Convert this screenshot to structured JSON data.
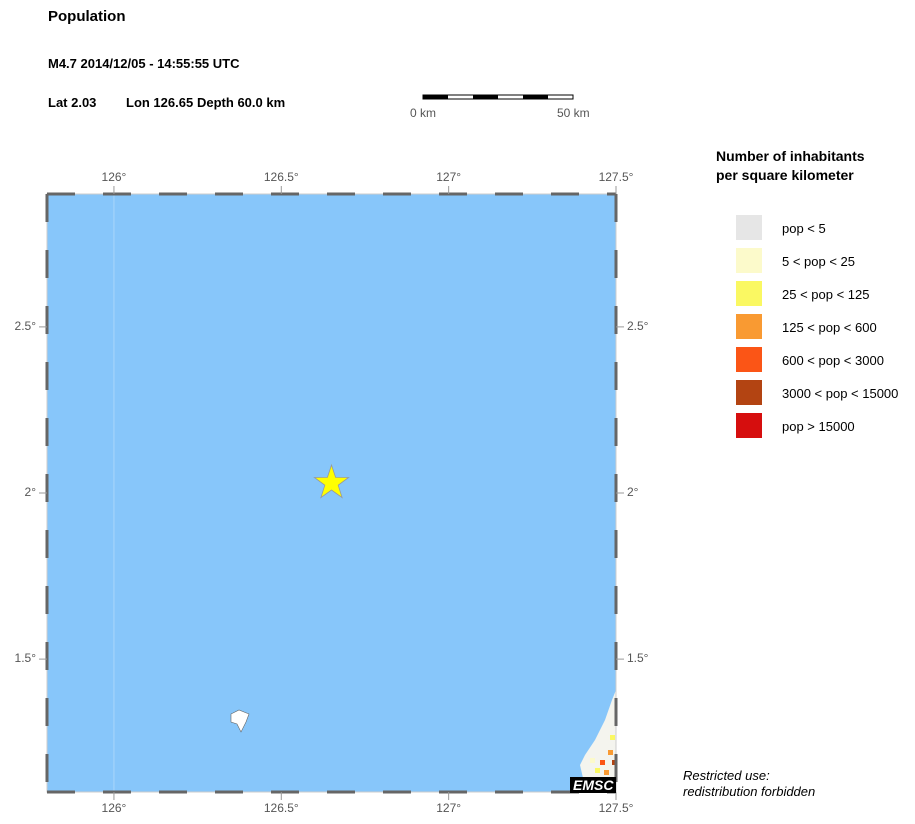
{
  "title": "Population",
  "event": {
    "line1": "M4.7  2014/12/05 - 14:55:55 UTC",
    "lat": "Lat  2.03",
    "lon": "Lon 126.65",
    "depth": "Depth  60.0 km"
  },
  "scalebar": {
    "start": "0 km",
    "end": "50 km"
  },
  "map": {
    "lon_range": [
      125.8,
      127.5
    ],
    "lat_range": [
      1.1,
      2.9
    ],
    "epicenter": {
      "lon": 126.65,
      "lat": 2.03
    },
    "sea_color": "#87c6fa",
    "lon_ticks": [
      "126°",
      "126.5°",
      "127°",
      "127.5°"
    ],
    "lat_ticks": [
      "2.5°",
      "2°",
      "1.5°"
    ]
  },
  "legend": {
    "title1": "Number of inhabitants",
    "title2": "per square kilometer",
    "items": [
      {
        "label": "pop < 5",
        "color": "#e6e6e6"
      },
      {
        "label": "5 < pop < 25",
        "color": "#fcfacb"
      },
      {
        "label": "25 < pop < 125",
        "color": "#faf862"
      },
      {
        "label": "125 < pop < 600",
        "color": "#f99a32"
      },
      {
        "label": "600 < pop < 3000",
        "color": "#fb5516"
      },
      {
        "label": "3000 < pop < 15000",
        "color": "#b34412"
      },
      {
        "label": "pop > 15000",
        "color": "#d60e0e"
      }
    ]
  },
  "logo": "EMSC",
  "notice1": "Restricted use:",
  "notice2": "redistribution forbidden"
}
